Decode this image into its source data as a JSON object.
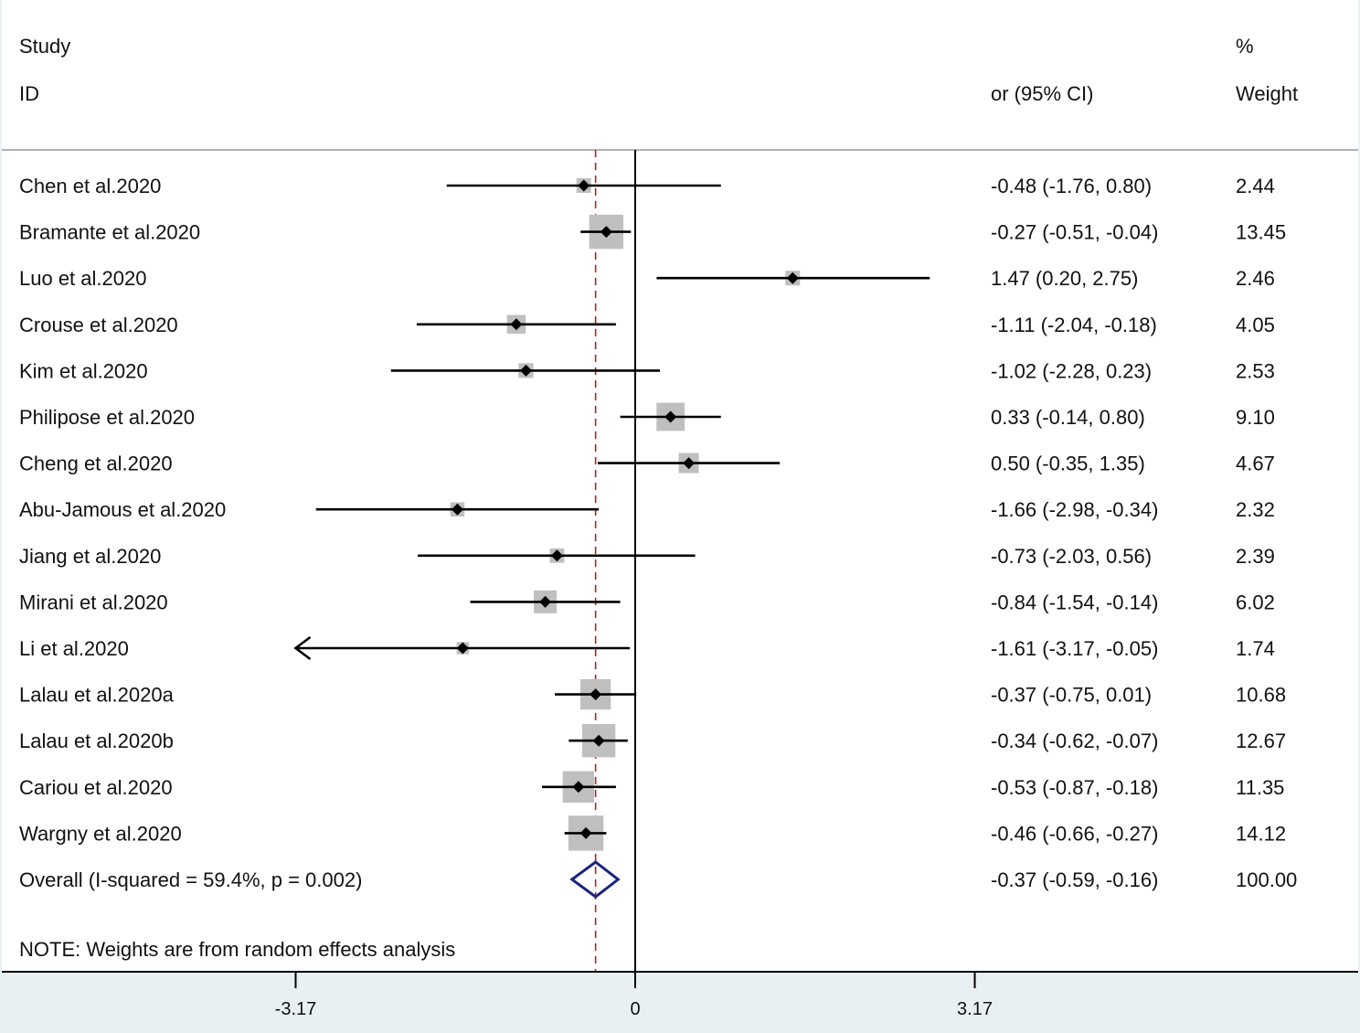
{
  "header": {
    "col1_line1": "Study",
    "col1_line2": "ID",
    "col2": "or (95% CI)",
    "col3_line1": "%",
    "col3_line2": "Weight"
  },
  "note": "NOTE: Weights are from random effects analysis",
  "colors": {
    "panel": "#ffffff",
    "frame": "#e9f0f4",
    "weight_box": "#bfbfbf",
    "marker": "#000000",
    "overall_diamond": "#1a237e",
    "overall_line": "#b22222"
  },
  "chart_data": {
    "type": "forest",
    "x_scale": [
      -3.17,
      3.17
    ],
    "x_ticks": [
      {
        "value": -3.17,
        "label": "-3.17"
      },
      {
        "value": 0,
        "label": "0"
      },
      {
        "value": 3.17,
        "label": "3.17"
      }
    ],
    "null_line": 0,
    "studies": [
      {
        "id": "Chen et al.2020",
        "estimate": -0.48,
        "lower": -1.76,
        "upper": 0.8,
        "ci_text": "-0.48 (-1.76, 0.80)",
        "weight": 2.44,
        "weight_text": "2.44"
      },
      {
        "id": "Bramante et al.2020",
        "estimate": -0.27,
        "lower": -0.51,
        "upper": -0.04,
        "ci_text": "-0.27 (-0.51, -0.04)",
        "weight": 13.45,
        "weight_text": "13.45"
      },
      {
        "id": "Luo et al.2020",
        "estimate": 1.47,
        "lower": 0.2,
        "upper": 2.75,
        "ci_text": "1.47 (0.20, 2.75)",
        "weight": 2.46,
        "weight_text": "2.46"
      },
      {
        "id": "Crouse et al.2020",
        "estimate": -1.11,
        "lower": -2.04,
        "upper": -0.18,
        "ci_text": "-1.11 (-2.04, -0.18)",
        "weight": 4.05,
        "weight_text": "4.05"
      },
      {
        "id": "Kim et al.2020",
        "estimate": -1.02,
        "lower": -2.28,
        "upper": 0.23,
        "ci_text": "-1.02 (-2.28, 0.23)",
        "weight": 2.53,
        "weight_text": "2.53"
      },
      {
        "id": "Philipose et al.2020",
        "estimate": 0.33,
        "lower": -0.14,
        "upper": 0.8,
        "ci_text": "0.33 (-0.14, 0.80)",
        "weight": 9.1,
        "weight_text": "9.10"
      },
      {
        "id": "Cheng et al.2020",
        "estimate": 0.5,
        "lower": -0.35,
        "upper": 1.35,
        "ci_text": "0.50 (-0.35, 1.35)",
        "weight": 4.67,
        "weight_text": "4.67"
      },
      {
        "id": "Abu-Jamous et al.2020",
        "estimate": -1.66,
        "lower": -2.98,
        "upper": -0.34,
        "ci_text": "-1.66 (-2.98, -0.34)",
        "weight": 2.32,
        "weight_text": "2.32"
      },
      {
        "id": "Jiang et al.2020",
        "estimate": -0.73,
        "lower": -2.03,
        "upper": 0.56,
        "ci_text": "-0.73 (-2.03, 0.56)",
        "weight": 2.39,
        "weight_text": "2.39"
      },
      {
        "id": "Mirani et al.2020",
        "estimate": -0.84,
        "lower": -1.54,
        "upper": -0.14,
        "ci_text": "-0.84 (-1.54, -0.14)",
        "weight": 6.02,
        "weight_text": "6.02"
      },
      {
        "id": "Li et al.2020",
        "estimate": -1.61,
        "lower": -3.17,
        "upper": -0.05,
        "ci_text": "-1.61 (-3.17, -0.05)",
        "weight": 1.74,
        "weight_text": "1.74",
        "lower_truncated": true
      },
      {
        "id": "Lalau et al.2020a",
        "estimate": -0.37,
        "lower": -0.75,
        "upper": 0.01,
        "ci_text": "-0.37 (-0.75, 0.01)",
        "weight": 10.68,
        "weight_text": "10.68"
      },
      {
        "id": "Lalau et al.2020b",
        "estimate": -0.34,
        "lower": -0.62,
        "upper": -0.07,
        "ci_text": "-0.34 (-0.62, -0.07)",
        "weight": 12.67,
        "weight_text": "12.67"
      },
      {
        "id": "Cariou et al.2020",
        "estimate": -0.53,
        "lower": -0.87,
        "upper": -0.18,
        "ci_text": "-0.53 (-0.87, -0.18)",
        "weight": 11.35,
        "weight_text": "11.35"
      },
      {
        "id": "Wargny et al.2020",
        "estimate": -0.46,
        "lower": -0.66,
        "upper": -0.27,
        "ci_text": "-0.46 (-0.66, -0.27)",
        "weight": 14.12,
        "weight_text": "14.12"
      }
    ],
    "overall": {
      "label": "Overall  (I-squared = 59.4%, p = 0.002)",
      "estimate": -0.37,
      "lower": -0.59,
      "upper": -0.16,
      "ci_text": "-0.37 (-0.59, -0.16)",
      "weight": 100.0,
      "weight_text": "100.00"
    }
  }
}
